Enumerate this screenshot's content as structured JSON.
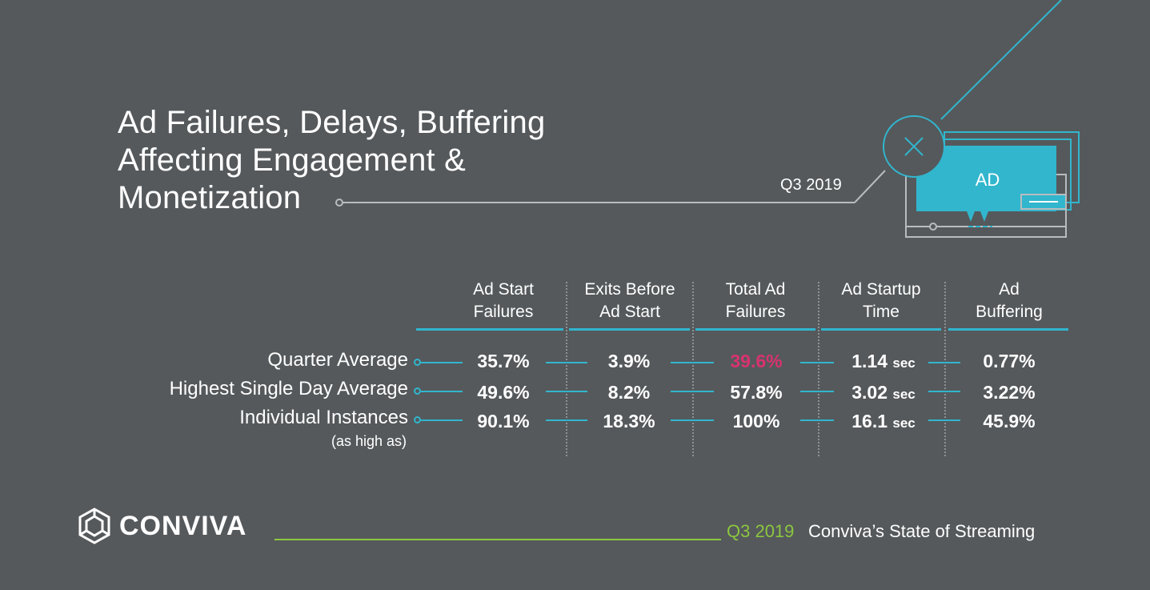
{
  "header": {
    "title_lines": [
      "Ad Failures, Delays, Buffering",
      "Affecting Engagement &",
      "Monetization"
    ],
    "period": "Q3 2019"
  },
  "illustration": {
    "ad_label": "AD",
    "close_icon": "close-x-icon"
  },
  "table": {
    "columns": [
      {
        "line1": "Ad Start",
        "line2": "Failures"
      },
      {
        "line1": "Exits Before",
        "line2": "Ad Start"
      },
      {
        "line1": "Total Ad",
        "line2": "Failures"
      },
      {
        "line1": "Ad Startup",
        "line2": "Time"
      },
      {
        "line1": "Ad",
        "line2": "Buffering"
      }
    ],
    "rows": [
      {
        "label": "Quarter Average",
        "cells": [
          {
            "value": "35.7%",
            "unit": ""
          },
          {
            "value": "3.9%",
            "unit": ""
          },
          {
            "value": "39.6%",
            "unit": ""
          },
          {
            "value": "1.14",
            "unit": "sec"
          },
          {
            "value": "0.77%",
            "unit": ""
          }
        ]
      },
      {
        "label": "Highest Single Day Average",
        "cells": [
          {
            "value": "49.6%",
            "unit": ""
          },
          {
            "value": "8.2%",
            "unit": ""
          },
          {
            "value": "57.8%",
            "unit": ""
          },
          {
            "value": "3.02",
            "unit": "sec"
          },
          {
            "value": "3.22%",
            "unit": ""
          }
        ]
      },
      {
        "label": "Individual Instances",
        "sublabel": "(as high as)",
        "cells": [
          {
            "value": "90.1%",
            "unit": ""
          },
          {
            "value": "18.3%",
            "unit": ""
          },
          {
            "value": "100%",
            "unit": ""
          },
          {
            "value": "16.1",
            "unit": "sec"
          },
          {
            "value": "45.9%",
            "unit": ""
          }
        ]
      }
    ],
    "highlight_color": "#d8336e",
    "accent_color": "#31b6cd"
  },
  "footer": {
    "brand": "CONVIVA",
    "period": "Q3 2019",
    "text": "Conviva’s State of Streaming",
    "line_color": "#8cc63f"
  }
}
